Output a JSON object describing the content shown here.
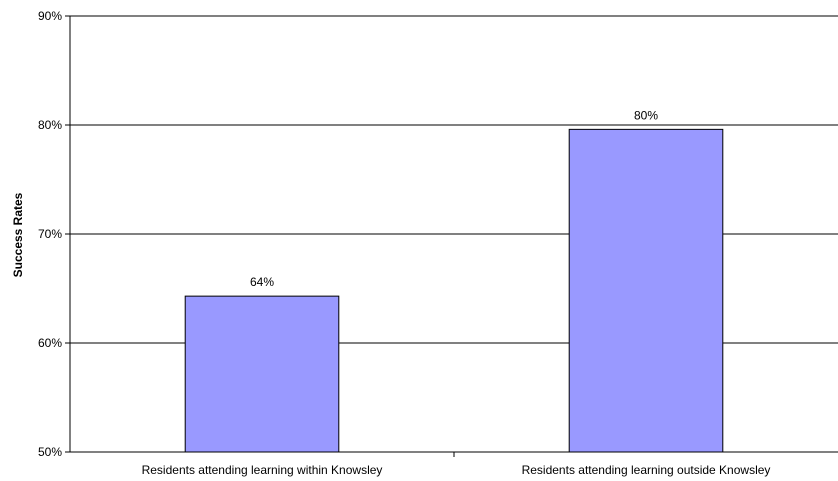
{
  "chart_data": {
    "type": "bar",
    "title": "",
    "xlabel": "",
    "ylabel": "Success Rates",
    "categories": [
      "Residents attending learning within Knowsley",
      "Residents attending learning outside Knowsley"
    ],
    "values": [
      64.3,
      79.6
    ],
    "data_labels": [
      "64%",
      "80%"
    ],
    "ylim": [
      50,
      90
    ],
    "yticks": [
      50,
      60,
      70,
      80,
      90
    ],
    "ytick_labels": [
      "50%",
      "60%",
      "70%",
      "80%",
      "90%"
    ],
    "grid": true,
    "legend": "none",
    "colors": {
      "bar": "#9999ff",
      "bar_edge": "#000000",
      "grid": "#000000"
    }
  }
}
